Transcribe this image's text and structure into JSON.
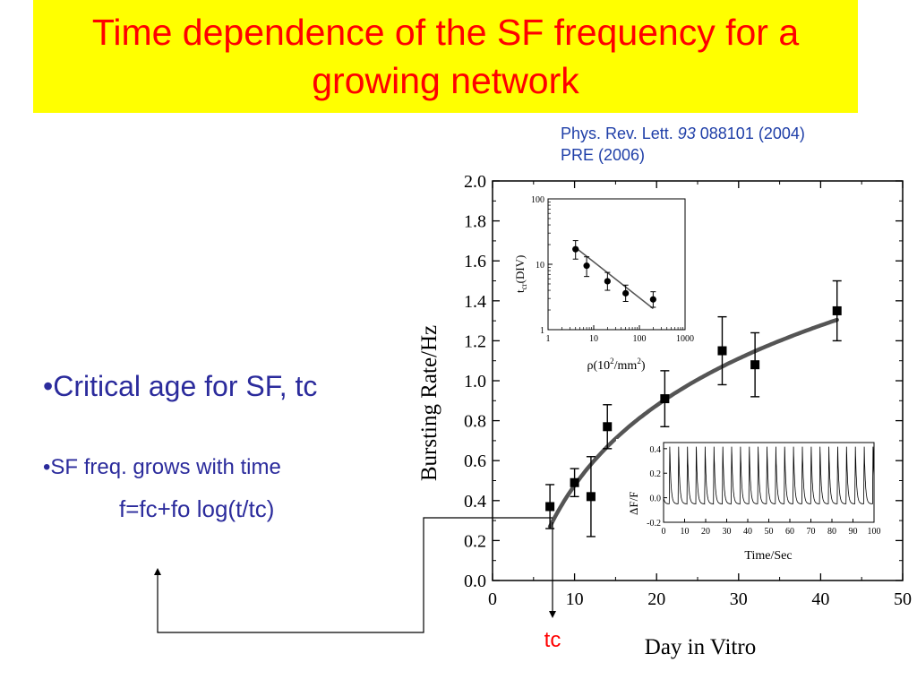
{
  "slide": {
    "title_line1": "Time dependence of the SF frequency for a",
    "title_line2": "growing network",
    "citation_line1_pre": "Phys. Rev. Lett. ",
    "citation_line1_vol": "93",
    "citation_line1_post": " 088101 (2004)",
    "citation_line2": "PRE (2006)",
    "bullet1": "•Critical age for SF, tc",
    "bullet2": "•SF freq. grows with time",
    "formula": "f=fc+fo log(t/tc)",
    "tc_label": "tc"
  },
  "colors": {
    "title_bg": "#ffff00",
    "title_text": "#ff0000",
    "citation_text": "#1f3fa8",
    "bullet_text": "#2b2b9c",
    "tc_label": "#ff0000",
    "fit_curve": "#555555"
  },
  "chart_data": [
    {
      "type": "scatter",
      "xlabel": "Day in Vitro",
      "ylabel": "Bursting Rate/Hz",
      "xlim": [
        0,
        50
      ],
      "ylim": [
        0,
        2.0
      ],
      "xticks": [
        0,
        10,
        20,
        30,
        40,
        50
      ],
      "yticks": [
        0.0,
        0.2,
        0.4,
        0.6,
        0.8,
        1.0,
        1.2,
        1.4,
        1.6,
        1.8,
        2.0
      ],
      "yticklabels": [
        "0.0",
        "0.2",
        "0.4",
        "0.6",
        "0.8",
        "1.0",
        "1.2",
        "1.4",
        "1.6",
        "1.8",
        "2.0"
      ],
      "marker": "square",
      "points": [
        {
          "x": 7,
          "y": 0.37,
          "err": 0.11
        },
        {
          "x": 10,
          "y": 0.49,
          "err": 0.07
        },
        {
          "x": 12,
          "y": 0.42,
          "err": 0.2
        },
        {
          "x": 14,
          "y": 0.77,
          "err": 0.11
        },
        {
          "x": 21,
          "y": 0.91,
          "err": 0.14
        },
        {
          "x": 28,
          "y": 1.15,
          "err": 0.17
        },
        {
          "x": 32,
          "y": 1.08,
          "err": 0.16
        },
        {
          "x": 42,
          "y": 1.35,
          "err": 0.15
        }
      ],
      "fit": {
        "type": "logarithmic",
        "tc": 7,
        "fc": 0.27,
        "fo": 1.33
      }
    },
    {
      "type": "scatter",
      "xscale": "log",
      "yscale": "log",
      "xlabel": "ρ(10²/mm²)",
      "ylabel": "tcr(DIV)",
      "xlim": [
        1,
        1000
      ],
      "ylim": [
        1,
        100
      ],
      "xticklabels": [
        "1",
        "10",
        "100",
        "1000"
      ],
      "yticklabels": [
        "1",
        "10",
        "100"
      ],
      "marker": "circle",
      "points": [
        {
          "x": 4,
          "y": 17,
          "lo": 12,
          "hi": 23
        },
        {
          "x": 7,
          "y": 9.5,
          "lo": 6.5,
          "hi": 13
        },
        {
          "x": 20,
          "y": 5.5,
          "lo": 4.0,
          "hi": 7.5
        },
        {
          "x": 50,
          "y": 3.6,
          "lo": 2.7,
          "hi": 4.8
        },
        {
          "x": 200,
          "y": 2.9,
          "lo": 2.2,
          "hi": 3.8
        }
      ],
      "fit": {
        "x1": 4,
        "y1": 18,
        "x2": 200,
        "y2": 2.1
      }
    },
    {
      "type": "line",
      "xlabel": "Time/Sec",
      "ylabel": "ΔF/F",
      "xlim": [
        0,
        100
      ],
      "ylim": [
        -0.2,
        0.45
      ],
      "xticks": [
        0,
        10,
        20,
        30,
        40,
        50,
        60,
        70,
        80,
        90,
        100
      ],
      "yticks": [
        -0.2,
        0.0,
        0.2,
        0.4
      ],
      "yticklabels": [
        "-0.2",
        "0.0",
        "0.2",
        "0.4"
      ],
      "series": [
        {
          "burst_period_s": 4.2,
          "baseline": -0.05,
          "peak": 0.42
        }
      ]
    }
  ]
}
